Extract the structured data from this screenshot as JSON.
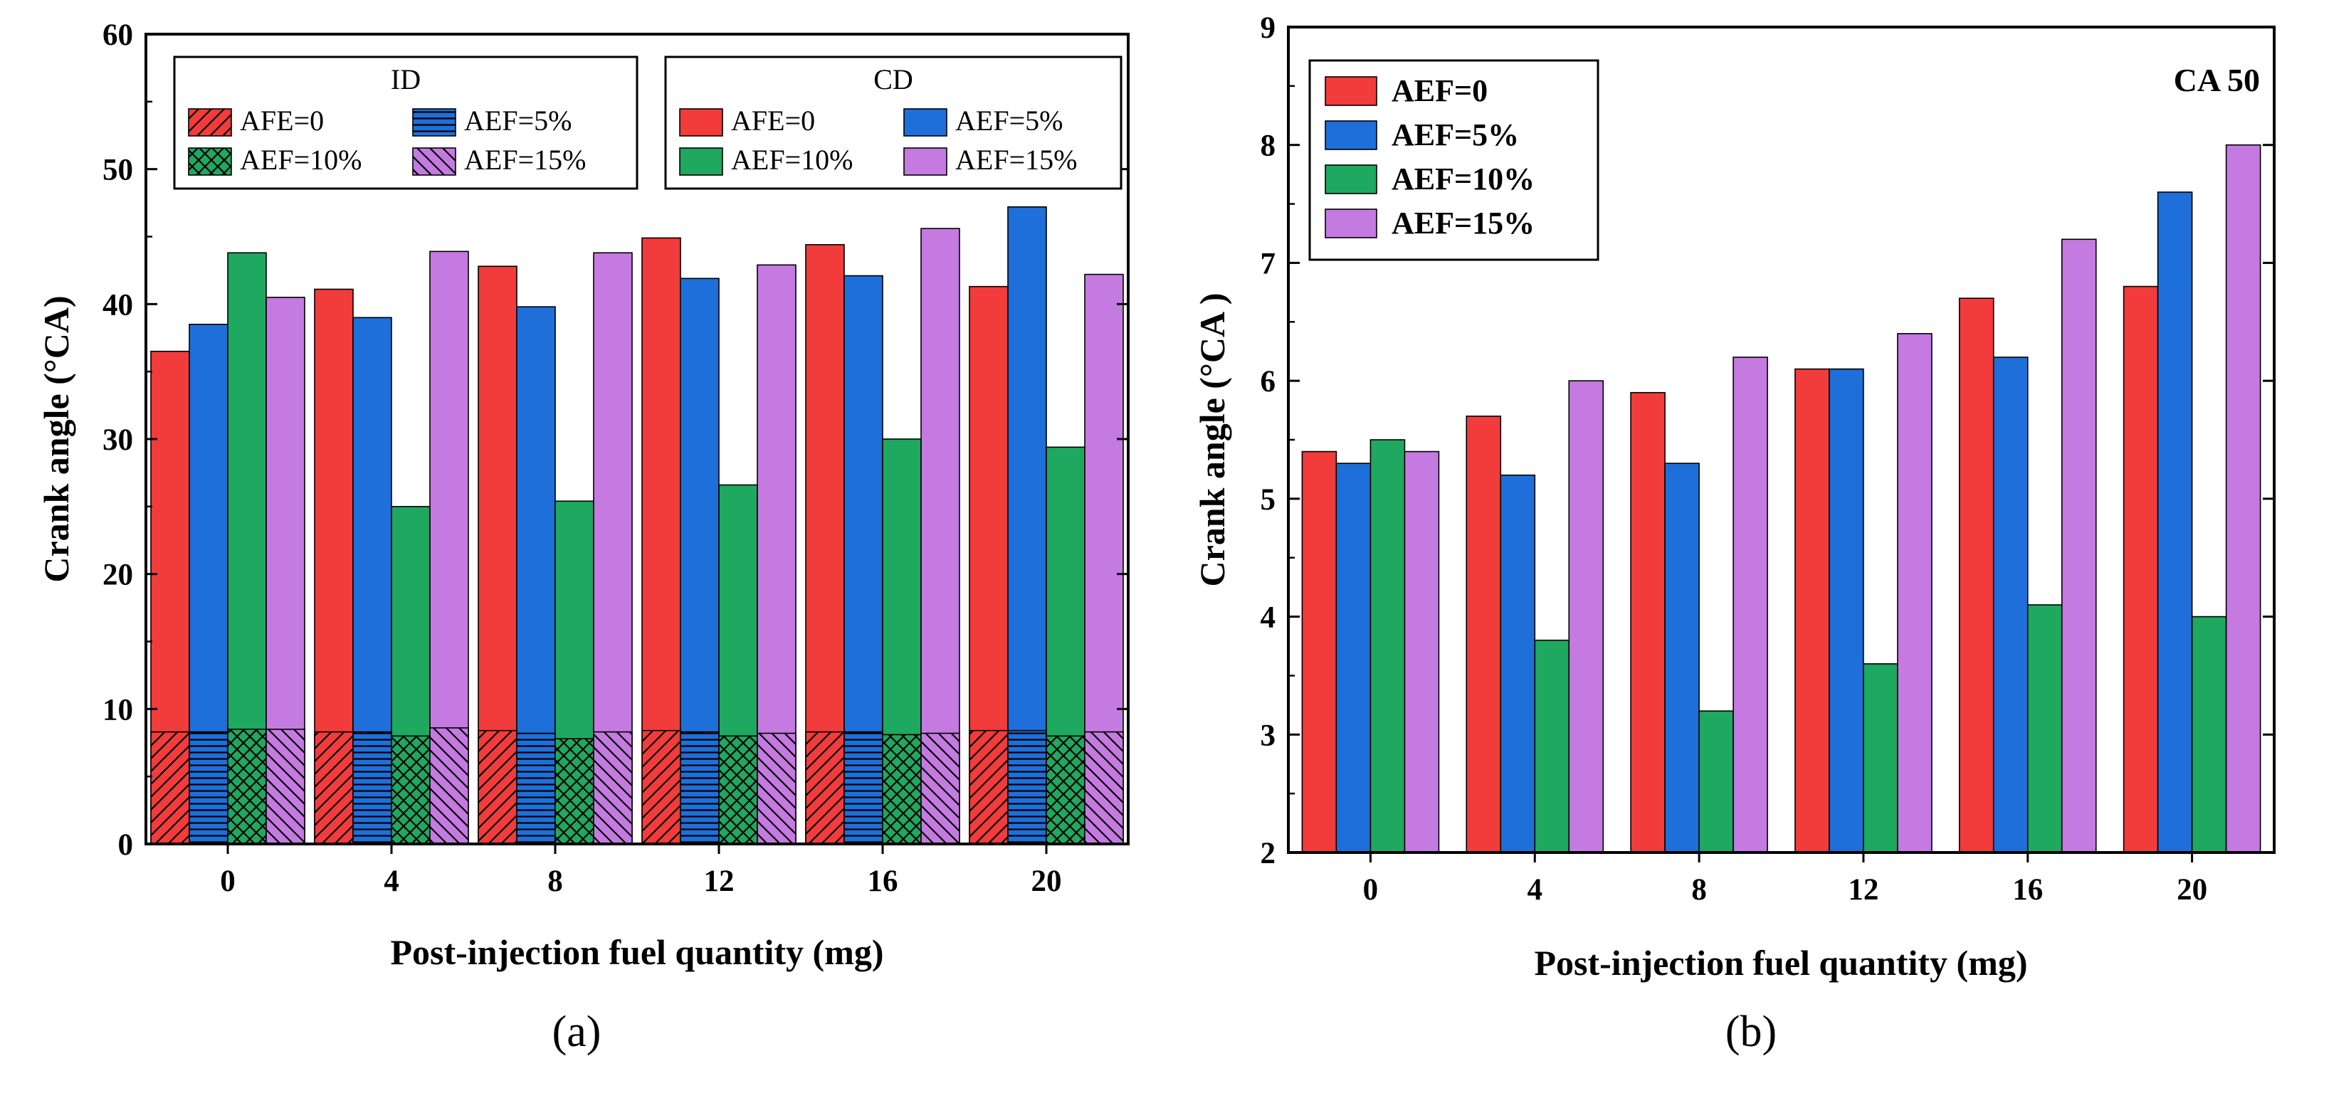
{
  "colors": {
    "red": "#F23B3B",
    "blue": "#1E6FD9",
    "green": "#1FA85F",
    "violet": "#C47AE0"
  },
  "chart_data": [
    {
      "type": "bar",
      "panel_label": "(a)",
      "stacked_overlay": true,
      "categories": [
        "0",
        "4",
        "8",
        "12",
        "16",
        "20"
      ],
      "xlabel": "Post-injection fuel quantity (mg)",
      "ylabel": "Crank angle (°CA)",
      "ylim": [
        0,
        60
      ],
      "yticks": [
        0,
        10,
        20,
        30,
        40,
        50,
        60
      ],
      "legend_placement": "top",
      "legend_groups": [
        {
          "title": "ID",
          "pattern": "hatched",
          "entries": [
            "AFE=0",
            "AEF=5%",
            "AEF=10%",
            "AEF=15%"
          ]
        },
        {
          "title": "CD",
          "pattern": "solid",
          "entries": [
            "AFE=0",
            "AEF=5%",
            "AEF=10%",
            "AEF=15%"
          ]
        }
      ],
      "series": [
        {
          "name": "CD AFE=0",
          "color": "red",
          "values": [
            36.5,
            41.1,
            42.8,
            44.9,
            44.4,
            41.3
          ]
        },
        {
          "name": "CD AEF=5%",
          "color": "blue",
          "values": [
            38.5,
            39.0,
            39.8,
            41.9,
            42.1,
            47.2
          ]
        },
        {
          "name": "CD AEF=10%",
          "color": "green",
          "values": [
            43.8,
            25.0,
            25.4,
            26.6,
            30.0,
            29.4
          ]
        },
        {
          "name": "CD AEF=15%",
          "color": "violet",
          "values": [
            40.5,
            43.9,
            43.8,
            42.9,
            45.6,
            42.2
          ]
        },
        {
          "name": "ID AFE=0",
          "color": "red",
          "pattern": "diag-right",
          "values": [
            8.3,
            8.3,
            8.4,
            8.4,
            8.3,
            8.4
          ]
        },
        {
          "name": "ID AEF=5%",
          "color": "blue",
          "pattern": "horizontal",
          "values": [
            8.3,
            8.3,
            8.2,
            8.3,
            8.3,
            8.4
          ]
        },
        {
          "name": "ID AEF=10%",
          "color": "green",
          "pattern": "crosshatch",
          "values": [
            8.5,
            8.0,
            7.8,
            8.0,
            8.1,
            8.0
          ]
        },
        {
          "name": "ID AEF=15%",
          "color": "violet",
          "pattern": "diag-left",
          "values": [
            8.5,
            8.6,
            8.3,
            8.2,
            8.2,
            8.3
          ]
        }
      ]
    },
    {
      "type": "bar",
      "panel_label": "(b)",
      "annotation": "CA 50",
      "categories": [
        "0",
        "4",
        "8",
        "12",
        "16",
        "20"
      ],
      "xlabel": "Post-injection fuel quantity (mg)",
      "ylabel": "Crank angle (°CA )",
      "ylim": [
        2,
        9
      ],
      "yticks": [
        2,
        3,
        4,
        5,
        6,
        7,
        8,
        9
      ],
      "legend_placement": "top-left",
      "series": [
        {
          "name": "AEF=0",
          "color": "red",
          "values": [
            5.4,
            5.7,
            5.9,
            6.1,
            6.7,
            6.8
          ]
        },
        {
          "name": "AEF=5%",
          "color": "blue",
          "values": [
            5.3,
            5.2,
            5.3,
            6.1,
            6.2,
            7.6
          ]
        },
        {
          "name": "AEF=10%",
          "color": "green",
          "values": [
            5.5,
            3.8,
            3.2,
            3.6,
            4.1,
            4.0
          ]
        },
        {
          "name": "AEF=15%",
          "color": "violet",
          "values": [
            5.4,
            6.0,
            6.2,
            6.4,
            7.2,
            8.0
          ]
        }
      ]
    }
  ]
}
